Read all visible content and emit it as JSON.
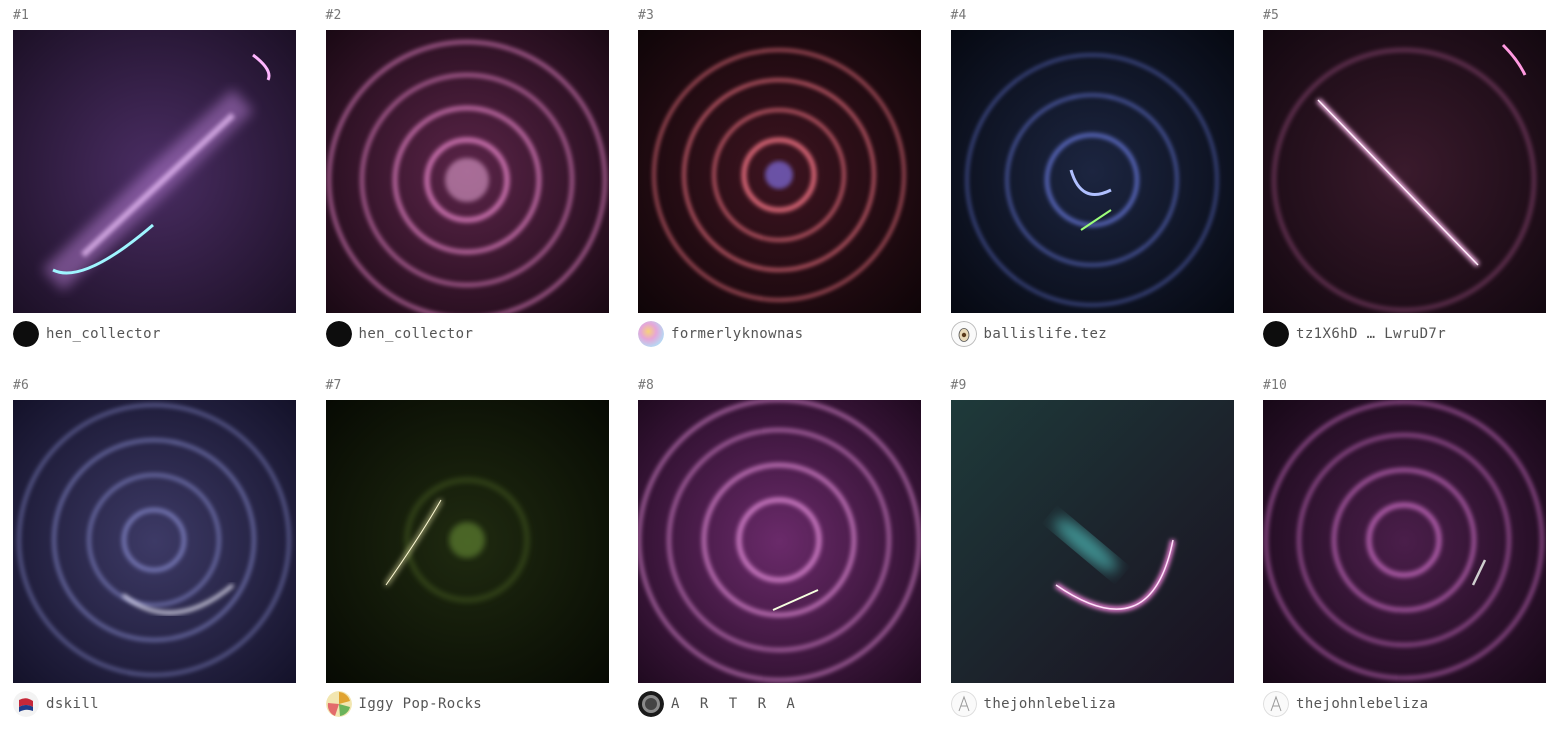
{
  "items": [
    {
      "rank": "#1",
      "owner": "hen_collector",
      "avatar": "black-dot-avatar",
      "palette": "violet-cyan"
    },
    {
      "rank": "#2",
      "owner": "hen_collector",
      "avatar": "black-dot-avatar",
      "palette": "pink-rings"
    },
    {
      "rank": "#3",
      "owner": "formerlyknownas",
      "avatar": "pastel-blob-avatar",
      "palette": "red-rings"
    },
    {
      "rank": "#4",
      "owner": "ballislife.tez",
      "avatar": "egg-face-avatar",
      "palette": "blue-rings"
    },
    {
      "rank": "#5",
      "owner": "tz1X6hD … LwruD7r",
      "avatar": "black-dot-avatar",
      "palette": "pink-diagonal"
    },
    {
      "rank": "#6",
      "owner": "dskill",
      "avatar": "flag-avatar",
      "palette": "lavender-rings"
    },
    {
      "rank": "#7",
      "owner": "Iggy Pop-Rocks",
      "avatar": "candy-avatar",
      "palette": "green-dark"
    },
    {
      "rank": "#8",
      "owner": "A R T R A",
      "avatar": "ring-avatar",
      "palette": "magenta-rings"
    },
    {
      "rank": "#9",
      "owner": "thejohnlebeliza",
      "avatar": "sketch-avatar",
      "palette": "teal-arc"
    },
    {
      "rank": "#10",
      "owner": "thejohnlebeliza",
      "avatar": "sketch-avatar",
      "palette": "purple-rings"
    }
  ]
}
